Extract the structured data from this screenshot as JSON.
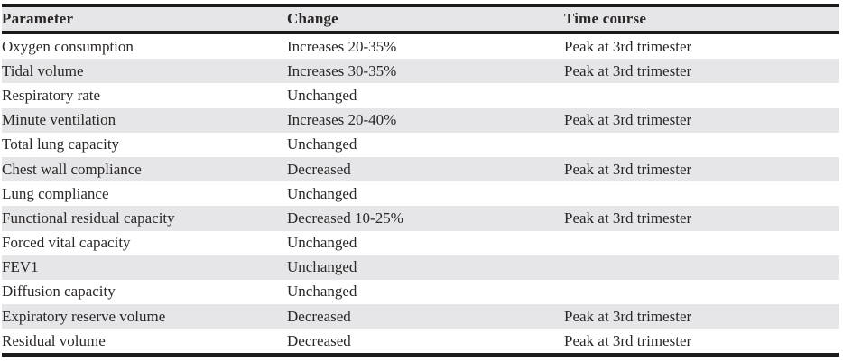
{
  "table": {
    "headers": {
      "parameter": "Parameter",
      "change": "Change",
      "time_course": "Time course"
    },
    "rows": [
      {
        "parameter": "Oxygen consumption",
        "change": "Increases 20-35%",
        "time_course": "Peak at 3rd trimester"
      },
      {
        "parameter": "Tidal volume",
        "change": "Increases 30-35%",
        "time_course": "Peak at 3rd trimester"
      },
      {
        "parameter": "Respiratory rate",
        "change": "Unchanged",
        "time_course": ""
      },
      {
        "parameter": "Minute ventilation",
        "change": "Increases 20-40%",
        "time_course": "Peak at 3rd trimester"
      },
      {
        "parameter": "Total lung capacity",
        "change": "Unchanged",
        "time_course": ""
      },
      {
        "parameter": "Chest wall compliance",
        "change": "Decreased",
        "time_course": "Peak at 3rd trimester"
      },
      {
        "parameter": "Lung compliance",
        "change": "Unchanged",
        "time_course": ""
      },
      {
        "parameter": "Functional residual capacity",
        "change": "Decreased 10-25%",
        "time_course": "Peak at 3rd trimester"
      },
      {
        "parameter": "Forced vital capacity",
        "change": "Unchanged",
        "time_course": ""
      },
      {
        "parameter": "FEV1",
        "change": "Unchanged",
        "time_course": ""
      },
      {
        "parameter": "Diffusion capacity",
        "change": "Unchanged",
        "time_course": ""
      },
      {
        "parameter": "Expiratory reserve volume",
        "change": "Decreased",
        "time_course": "Peak at 3rd trimester"
      },
      {
        "parameter": "Residual volume",
        "change": "Decreased",
        "time_course": "Peak at 3rd trimester"
      }
    ],
    "colors": {
      "stripe": "#e6e6e8",
      "rule": "#1c1c1c",
      "text": "#2b2728"
    }
  }
}
